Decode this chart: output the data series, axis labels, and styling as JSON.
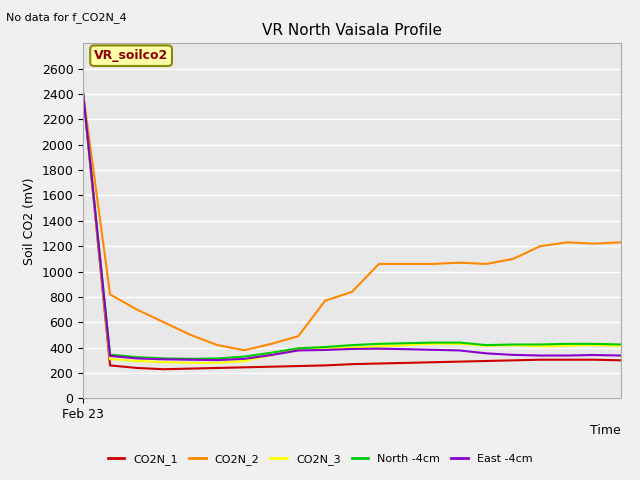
{
  "title": "VR North Vaisala Profile",
  "top_left_text": "No data for f_CO2N_4",
  "annotation_box": "VR_soilco2",
  "xlabel": "Time",
  "ylabel": "Soil CO2 (mV)",
  "ylim": [
    0,
    2800
  ],
  "yticks": [
    0,
    200,
    400,
    600,
    800,
    1000,
    1200,
    1400,
    1600,
    1800,
    2000,
    2200,
    2400,
    2600
  ],
  "xstart_label": "Feb 23",
  "fig_bg": "#f0f0f0",
  "plot_bg": "#e8e8e8",
  "series": {
    "CO2N_1": {
      "color": "#cc0000",
      "x": [
        0,
        1,
        2,
        3,
        4,
        5,
        6,
        7,
        8,
        9,
        10,
        11,
        12,
        13,
        14,
        15,
        16,
        17,
        18,
        19,
        20
      ],
      "y": [
        2400,
        260,
        240,
        230,
        235,
        240,
        245,
        250,
        255,
        260,
        270,
        275,
        280,
        285,
        290,
        295,
        300,
        305,
        305,
        305,
        300
      ]
    },
    "CO2N_2": {
      "color": "#ff8800",
      "x": [
        0,
        1,
        2,
        3,
        4,
        5,
        6,
        7,
        8,
        9,
        10,
        11,
        12,
        13,
        14,
        15,
        16,
        17,
        18,
        19,
        20
      ],
      "y": [
        2400,
        820,
        700,
        600,
        500,
        420,
        380,
        430,
        490,
        770,
        840,
        1060,
        1060,
        1060,
        1070,
        1060,
        1100,
        1200,
        1230,
        1220,
        1230
      ]
    },
    "CO2N_3": {
      "color": "#ffff00",
      "x": [
        0,
        1,
        2,
        3,
        4,
        5,
        6,
        7,
        8,
        9,
        10,
        11,
        12,
        13,
        14,
        15,
        16,
        17,
        18,
        19,
        20
      ],
      "y": [
        2400,
        310,
        295,
        285,
        280,
        280,
        295,
        340,
        390,
        400,
        400,
        410,
        420,
        430,
        430,
        415,
        420,
        410,
        415,
        420,
        415
      ]
    },
    "North -4cm": {
      "color": "#00cc00",
      "x": [
        0,
        1,
        2,
        3,
        4,
        5,
        6,
        7,
        8,
        9,
        10,
        11,
        12,
        13,
        14,
        15,
        16,
        17,
        18,
        19,
        20
      ],
      "y": [
        2400,
        345,
        325,
        315,
        312,
        315,
        330,
        360,
        395,
        405,
        420,
        430,
        435,
        440,
        440,
        420,
        425,
        425,
        430,
        430,
        425
      ]
    },
    "East -4cm": {
      "color": "#8800cc",
      "x": [
        0,
        1,
        2,
        3,
        4,
        5,
        6,
        7,
        8,
        9,
        10,
        11,
        12,
        13,
        14,
        15,
        16,
        17,
        18,
        19,
        20
      ],
      "y": [
        2400,
        335,
        315,
        308,
        305,
        302,
        312,
        342,
        378,
        382,
        390,
        392,
        388,
        383,
        378,
        355,
        343,
        338,
        338,
        342,
        338
      ]
    }
  },
  "legend_order": [
    "CO2N_1",
    "CO2N_2",
    "CO2N_3",
    "North -4cm",
    "East -4cm"
  ],
  "legend_colors": {
    "CO2N_1": "#cc0000",
    "CO2N_2": "#ff8800",
    "CO2N_3": "#ffff00",
    "North -4cm": "#00cc00",
    "East -4cm": "#8800cc"
  }
}
